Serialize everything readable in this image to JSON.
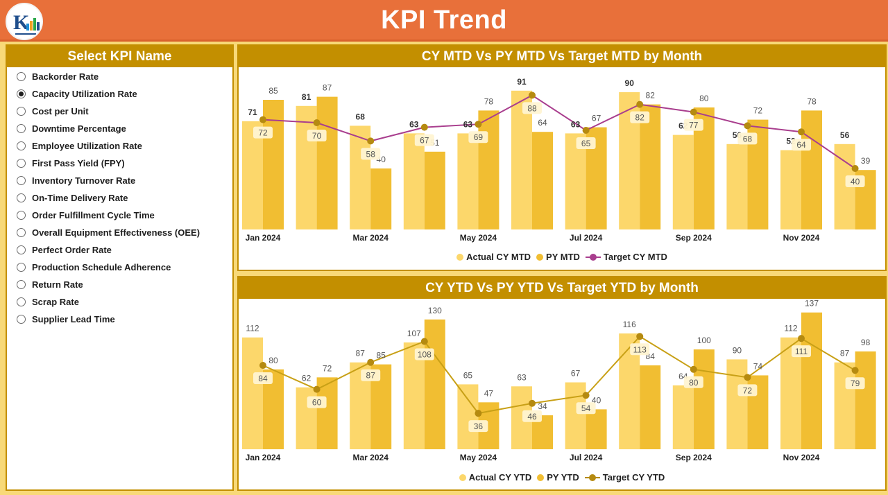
{
  "header": {
    "title": "KPI Trend",
    "logo_icon": "company-logo-icon"
  },
  "slicer": {
    "title": "Select KPI Name",
    "items": [
      {
        "label": "Backorder Rate",
        "selected": false
      },
      {
        "label": "Capacity Utilization Rate",
        "selected": true
      },
      {
        "label": "Cost per Unit",
        "selected": false
      },
      {
        "label": "Downtime Percentage",
        "selected": false
      },
      {
        "label": "Employee Utilization Rate",
        "selected": false
      },
      {
        "label": "First Pass Yield (FPY)",
        "selected": false
      },
      {
        "label": "Inventory Turnover Rate",
        "selected": false
      },
      {
        "label": "On-Time Delivery Rate",
        "selected": false
      },
      {
        "label": "Order Fulfillment Cycle Time",
        "selected": false
      },
      {
        "label": "Overall Equipment Effectiveness (OEE)",
        "selected": false
      },
      {
        "label": "Perfect Order Rate",
        "selected": false
      },
      {
        "label": "Production Schedule Adherence",
        "selected": false
      },
      {
        "label": "Return Rate",
        "selected": false
      },
      {
        "label": "Scrap Rate",
        "selected": false
      },
      {
        "label": "Supplier Lead Time",
        "selected": false
      }
    ]
  },
  "colors": {
    "header": "#E8703A",
    "panel_title": "#C38F00",
    "actual": "#FCD76B",
    "py": "#F1BE32",
    "target_mtd_line": "#A93E8E",
    "target_marker": "#B58A10",
    "target_ytd_line": "#C8A016"
  },
  "chart_data": [
    {
      "id": "mtd",
      "type": "bar",
      "title": "CY MTD Vs PY MTD Vs Target MTD by Month",
      "categories": [
        "Jan 2024",
        "Feb 2024",
        "Mar 2024",
        "Apr 2024",
        "May 2024",
        "Jun 2024",
        "Jul 2024",
        "Aug 2024",
        "Sep 2024",
        "Oct 2024",
        "Nov 2024",
        "Dec 2024"
      ],
      "tick_labels": [
        "Jan 2024",
        "",
        "Mar 2024",
        "",
        "May 2024",
        "",
        "Jul 2024",
        "",
        "Sep 2024",
        "",
        "Nov 2024",
        ""
      ],
      "series": [
        {
          "name": "Actual CY MTD",
          "kind": "bar",
          "values": [
            71,
            81,
            68,
            63,
            63,
            91,
            63,
            90,
            62,
            56,
            52,
            56
          ]
        },
        {
          "name": "PY MTD",
          "kind": "bar",
          "values": [
            85,
            87,
            40,
            51,
            78,
            64,
            67,
            82,
            80,
            72,
            78,
            39
          ]
        },
        {
          "name": "Target CY MTD",
          "kind": "line",
          "values": [
            72,
            70,
            58,
            67,
            69,
            88,
            65,
            82,
            77,
            68,
            64,
            40
          ]
        }
      ],
      "ylim": [
        0,
        100
      ]
    },
    {
      "id": "ytd",
      "type": "bar",
      "title": "CY YTD Vs PY YTD Vs Target YTD by Month",
      "categories": [
        "Jan 2024",
        "Feb 2024",
        "Mar 2024",
        "Apr 2024",
        "May 2024",
        "Jun 2024",
        "Jul 2024",
        "Aug 2024",
        "Sep 2024",
        "Oct 2024",
        "Nov 2024",
        "Dec 2024"
      ],
      "tick_labels": [
        "Jan 2024",
        "",
        "Mar 2024",
        "",
        "May 2024",
        "",
        "Jul 2024",
        "",
        "Sep 2024",
        "",
        "Nov 2024",
        ""
      ],
      "series": [
        {
          "name": "Actual CY YTD",
          "kind": "bar",
          "values": [
            112,
            62,
            87,
            107,
            65,
            63,
            67,
            116,
            64,
            90,
            112,
            87
          ]
        },
        {
          "name": "PY YTD",
          "kind": "bar",
          "values": [
            80,
            72,
            85,
            130,
            47,
            34,
            40,
            84,
            100,
            74,
            137,
            98
          ]
        },
        {
          "name": "Target CY YTD",
          "kind": "line",
          "values": [
            84,
            60,
            87,
            108,
            36,
            46,
            54,
            113,
            80,
            72,
            111,
            79
          ]
        }
      ],
      "ylim": [
        0,
        150
      ]
    }
  ]
}
